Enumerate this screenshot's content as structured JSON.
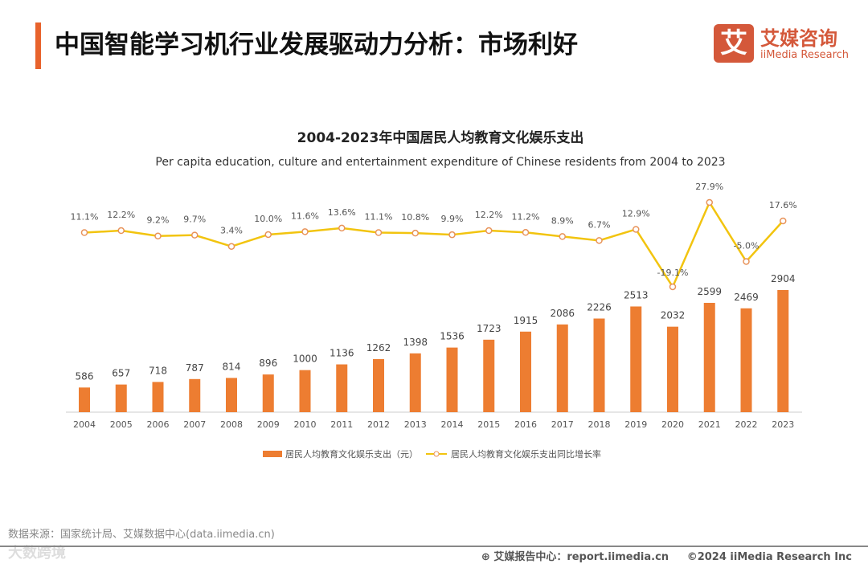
{
  "header": {
    "title": "中国智能学习机行业发展驱动力分析：市场利好"
  },
  "logo": {
    "icon_text": "艾",
    "cn": "艾媒咨询",
    "en": "iiMedia Research"
  },
  "footer": {
    "source": "数据来源：国家统计局、艾媒数据中心(data.iimedia.cn)",
    "watermark": "大数跨境",
    "report": "艾媒报告中心：report.iimedia.cn",
    "copyright": "©2024  iiMedia Research  Inc"
  },
  "chart_data": {
    "type": "bar+line",
    "title": "2004-2023年中国居民人均教育文化娱乐支出",
    "subtitle": "Per capita education, culture and entertainment expenditure of Chinese residents from 2004 to 2023",
    "categories": [
      "2004",
      "2005",
      "2006",
      "2007",
      "2008",
      "2009",
      "2010",
      "2011",
      "2012",
      "2013",
      "2014",
      "2015",
      "2016",
      "2017",
      "2018",
      "2019",
      "2020",
      "2021",
      "2022",
      "2023"
    ],
    "series": [
      {
        "name": "居民人均教育文化娱乐支出（元）",
        "type": "bar",
        "color": "#ed7d31",
        "values": [
          586,
          657,
          718,
          787,
          814,
          896,
          1000,
          1136,
          1262,
          1398,
          1536,
          1723,
          1915,
          2086,
          2226,
          2513,
          2032,
          2599,
          2469,
          2904
        ]
      },
      {
        "name": "居民人均教育文化娱乐支出同比增长率",
        "type": "line",
        "color": "#f2c40f",
        "values": [
          11.1,
          12.2,
          9.2,
          9.7,
          3.4,
          10.0,
          11.6,
          13.6,
          11.1,
          10.8,
          9.9,
          12.2,
          11.2,
          8.9,
          6.7,
          12.9,
          -19.1,
          27.9,
          -5.0,
          17.6
        ]
      }
    ],
    "legend_position": "bottom"
  }
}
